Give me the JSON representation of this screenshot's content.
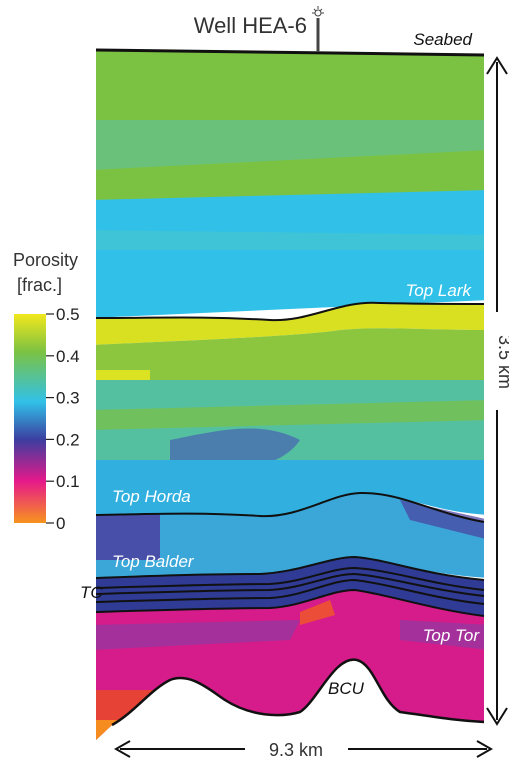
{
  "well": {
    "label": "Well HEA-6"
  },
  "seabed_label": "Seabed",
  "legend": {
    "title_line1": "Porosity",
    "title_line2": "[frac.]",
    "ticks": [
      "0.5",
      "0.4",
      "0.3",
      "0.2",
      "0.1",
      "0"
    ],
    "colors": [
      "#f2e81c",
      "#7cc242",
      "#31c1e8",
      "#3b3fa0",
      "#e6198a",
      "#f7941d"
    ]
  },
  "horizons": {
    "top_lark": "Top Lark",
    "top_horda": "Top Horda",
    "top_balder": "Top Balder",
    "tc": "TC",
    "top_tor": "Top Tor",
    "bcu": "BCU"
  },
  "scale": {
    "vertical": "3.5 km",
    "horizontal": "9.3 km"
  },
  "icons": {
    "well_derrick": "well-derrick-icon"
  }
}
